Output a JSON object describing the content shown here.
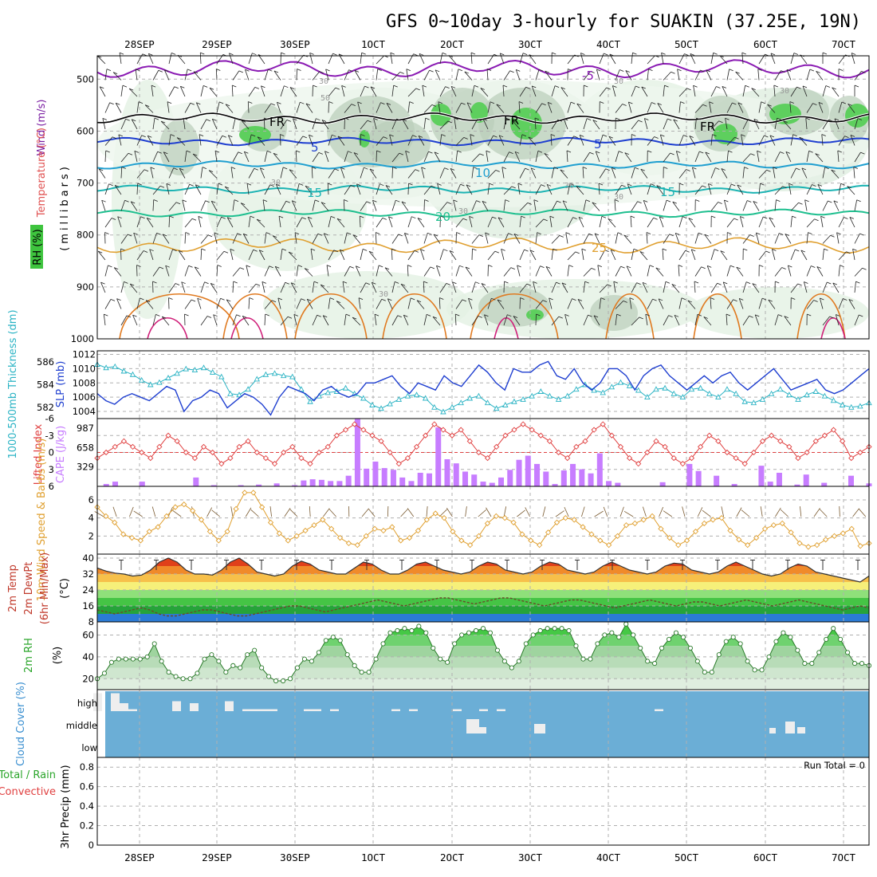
{
  "title": "GFS 0~10day 3-hourly for SUAKIN (37.25E, 19N)",
  "date_labels": [
    "28SEP",
    "29SEP",
    "30SEP",
    "1OCT",
    "2OCT",
    "3OCT",
    "4OCT",
    "5OCT",
    "6OCT",
    "7OCT"
  ],
  "panels": {
    "upper": {
      "ylabel_wind": "Wind (m/s)",
      "ylabel_temp": "Temperature (°C)",
      "ylabel_rh": "RH (%)",
      "ylabel_unit": "(millibars)",
      "yticks": [
        "500",
        "600",
        "700",
        "800",
        "900",
        "1000"
      ],
      "contour_labels": [
        "-5",
        "FR",
        "FR",
        "FR",
        "5",
        "5",
        "10",
        "15",
        "15",
        "20",
        "25"
      ],
      "rh_labels": [
        "30",
        "30",
        "30",
        "30",
        "30",
        "30",
        "50",
        "30",
        "30"
      ]
    },
    "slp": {
      "ylabel_thk": "1000-500mb Thickness (dm)",
      "ylabel_slp": "SLP (mb)",
      "yticks_left": [
        "586",
        "584",
        "582"
      ],
      "yticks_right": [
        "1012",
        "1010",
        "1008",
        "1006",
        "1004"
      ]
    },
    "cape": {
      "ylabel_li": "Lifted Index",
      "ylabel_cape": "CAPE (J/kg)",
      "yticks_left": [
        "-6",
        "-3",
        "0",
        "3",
        "6"
      ],
      "yticks_right": [
        "987",
        "658",
        "329"
      ]
    },
    "wind10": {
      "ylabel": "10m Wind Speed & Barbs (m/s)",
      "yticks": [
        "6",
        "4",
        "2"
      ]
    },
    "temp2m": {
      "ylabel1": "2m Temp",
      "ylabel2": "2m DewPt",
      "ylabel3": "(6hr Min/Max)",
      "ylabel_unit": "(°C)",
      "yticks": [
        "40",
        "32",
        "24",
        "16",
        "8"
      ]
    },
    "rh2m": {
      "ylabel": "2m RH",
      "ylabel_unit": "(%)",
      "yticks": [
        "60",
        "40",
        "20"
      ]
    },
    "cloud": {
      "ylabel": "Cloud Cover (%)",
      "levels": [
        "high",
        "middle",
        "low"
      ]
    },
    "precip": {
      "ylabel_total": "Total / Rain",
      "ylabel_conv": "Convective",
      "ylabel": "3hr Precip (mm)",
      "yticks": [
        "0.8",
        "0.6",
        "0.4",
        "0.2",
        "0"
      ],
      "run_total": "Run Total = 0"
    }
  },
  "colors": {
    "slp": "#1f3fd0",
    "thickness": "#2ab3c4",
    "lifted_index": "#e04040",
    "cape": "#c77dff",
    "wind_speed": "#e0a030",
    "rh_fill": "#3ec43e",
    "cloud_bg": "#6baed6",
    "cloud_bar": "#eeeeee"
  },
  "chart_data": [
    {
      "type": "line",
      "name": "SLP",
      "ylabel": "SLP (mb)",
      "ylim": [
        1003,
        1012
      ],
      "values": [
        1006.5,
        1005.5,
        1005,
        1006,
        1006.5,
        1006,
        1005.5,
        1006.5,
        1007.5,
        1007,
        1004,
        1005.5,
        1006,
        1007,
        1006.5,
        1004.5,
        1005.5,
        1006.5,
        1006,
        1005,
        1003.5,
        1006,
        1007.5,
        1007,
        1006.5,
        1005.5,
        1007,
        1007.5,
        1006.5,
        1006,
        1006.5,
        1008,
        1008,
        1008.5,
        1009,
        1007.5,
        1006.5,
        1008,
        1007.5,
        1007,
        1009,
        1008,
        1007.5,
        1009,
        1010.5,
        1009.5,
        1008,
        1007,
        1010,
        1009.5,
        1009.5,
        1010.5,
        1011,
        1009,
        1008.5,
        1010,
        1008,
        1007,
        1008,
        1010,
        1010,
        1009,
        1007,
        1009,
        1010,
        1010.5,
        1009,
        1008,
        1007,
        1008,
        1009,
        1008,
        1009,
        1009.5,
        1008,
        1007,
        1008,
        1009,
        1010,
        1008.5,
        1007,
        1007.5,
        1008,
        1008.5,
        1007,
        1006.5,
        1007,
        1008,
        1009,
        1010
      ]
    },
    {
      "type": "line",
      "name": "1000-500mb Thickness",
      "ylabel": "Thickness (dm)",
      "ylim": [
        581,
        587
      ],
      "values": [
        585.8,
        585.5,
        585.6,
        585.2,
        584.9,
        584.4,
        584.0,
        584.2,
        584.6,
        585.0,
        585.4,
        585.3,
        585.5,
        585.1,
        584.7,
        583.2,
        583.1,
        583.6,
        584.5,
        584.9,
        585.0,
        584.8,
        584.7,
        583.6,
        582.5,
        583.0,
        583.3,
        583.4,
        583.7,
        583.2,
        582.8,
        582.2,
        581.9,
        582.3,
        582.7,
        583.0,
        583.1,
        582.8,
        582.0,
        581.6,
        582.0,
        582.4,
        582.8,
        583.0,
        582.4,
        581.9,
        582.2,
        582.5,
        582.7,
        583.0,
        583.4,
        583.0,
        582.7,
        583.0,
        583.6,
        584.0,
        583.5,
        583.3,
        583.8,
        584.2,
        583.9,
        583.5,
        582.9,
        583.6,
        583.7,
        583.2,
        582.9,
        583.6,
        583.7,
        583.2,
        582.9,
        583.6,
        583.2,
        582.5,
        582.4,
        582.7,
        583.2,
        583.6,
        583.1,
        582.7,
        583.1,
        583.4,
        583.0,
        582.6,
        582.2,
        582.0,
        582.1,
        582.4
      ]
    },
    {
      "type": "line",
      "name": "Lifted Index",
      "ylim": [
        6,
        -6
      ],
      "values": [
        1,
        0,
        -1,
        -2,
        -1,
        0,
        1,
        -1,
        -3,
        -2,
        0,
        1,
        -1,
        0,
        2,
        1,
        -1,
        -2,
        0,
        1,
        2,
        0,
        -1,
        1,
        2,
        0,
        -1,
        -3,
        -4,
        -5,
        -4,
        -3,
        -2,
        0,
        2,
        1,
        -1,
        -3,
        -5,
        -4,
        -3,
        -4,
        -2,
        0,
        1,
        -1,
        -3,
        -4,
        -5,
        -4,
        -3,
        -2,
        0,
        1,
        -1,
        -2,
        -4,
        -5,
        -3,
        -1,
        1,
        2,
        0,
        -2,
        -1,
        1,
        2,
        1,
        -1,
        -3,
        -2,
        0,
        1,
        2,
        0,
        -2,
        -3,
        -2,
        -1,
        1,
        0,
        -2,
        -3,
        -4,
        -2,
        1,
        0,
        -1
      ]
    },
    {
      "type": "bar",
      "name": "CAPE",
      "ylim": [
        0,
        1150
      ],
      "values": [
        0,
        40,
        80,
        0,
        0,
        80,
        0,
        0,
        0,
        0,
        0,
        150,
        0,
        20,
        0,
        0,
        20,
        0,
        30,
        0,
        50,
        0,
        20,
        100,
        120,
        110,
        90,
        90,
        180,
        1200,
        300,
        420,
        310,
        280,
        150,
        90,
        230,
        220,
        1000,
        460,
        390,
        250,
        200,
        80,
        60,
        150,
        280,
        450,
        520,
        380,
        250,
        40,
        270,
        380,
        290,
        220,
        560,
        90,
        60,
        0,
        0,
        0,
        0,
        70,
        0,
        0,
        380,
        260,
        0,
        180,
        0,
        40,
        0,
        0,
        350,
        80,
        230,
        0,
        30,
        200,
        0,
        60,
        0,
        0,
        180,
        0,
        50
      ]
    },
    {
      "type": "line",
      "name": "10m Wind Speed",
      "ylabel": "m/s",
      "ylim": [
        0,
        7.5
      ],
      "values": [
        5.2,
        4.2,
        3.5,
        2.2,
        1.8,
        1.5,
        2.5,
        3.0,
        4.2,
        5.2,
        5.5,
        4.8,
        3.8,
        2.5,
        1.5,
        2.5,
        5.0,
        6.8,
        6.8,
        5.2,
        3.5,
        2.3,
        1.5,
        2.0,
        2.6,
        3.2,
        3.8,
        2.8,
        1.8,
        1.2,
        1.0,
        2.0,
        2.8,
        2.6,
        3.0,
        1.5,
        1.8,
        2.6,
        3.8,
        4.5,
        4.0,
        2.5,
        1.5,
        1.0,
        2.0,
        3.4,
        4.2,
        4.0,
        3.5,
        2.2,
        1.5,
        1.0,
        2.4,
        3.5,
        4.0,
        3.8,
        3.0,
        2.2,
        1.5,
        1.0,
        2.0,
        3.2,
        3.4,
        3.8,
        4.2,
        2.8,
        1.8,
        1.0,
        1.5,
        2.5,
        3.4,
        3.8,
        4.0,
        2.6,
        1.6,
        1.0,
        1.8,
        2.8,
        3.2,
        3.4,
        2.4,
        1.2,
        0.8,
        1.0,
        1.6,
        2.0,
        2.3,
        2.8,
        0.9,
        1.2
      ]
    },
    {
      "type": "area",
      "name": "2m Temp",
      "ylim": [
        8,
        42
      ],
      "values": [
        35,
        33.5,
        32.5,
        32,
        31,
        31.5,
        34,
        38,
        40,
        38,
        34,
        32,
        32,
        31.5,
        34,
        38,
        40,
        37,
        33,
        32,
        31,
        32,
        36,
        38.5,
        37,
        34,
        33,
        32,
        32,
        35,
        38,
        37,
        34,
        32,
        32,
        34,
        37,
        38,
        36,
        34,
        33,
        32,
        33,
        36,
        38,
        37,
        34,
        33,
        32,
        33,
        36,
        38,
        37,
        34,
        33,
        32,
        33,
        36,
        38,
        36,
        34,
        33,
        32,
        33,
        36,
        37.5,
        37,
        34,
        33,
        32,
        33,
        36,
        38,
        36,
        34,
        32,
        31,
        32,
        35,
        37,
        36,
        33,
        32,
        31,
        30,
        29,
        28,
        31
      ]
    },
    {
      "type": "line",
      "name": "2m DewPt",
      "ylim": [
        8,
        42
      ],
      "values": [
        14,
        13,
        12,
        13,
        14,
        15,
        14,
        12,
        11,
        11,
        12,
        13,
        14,
        14,
        13,
        12,
        11,
        11,
        12,
        13,
        14,
        15,
        16,
        16,
        15,
        14,
        13,
        14,
        15,
        16,
        17,
        18,
        19,
        18,
        17,
        16,
        17,
        18,
        19,
        20,
        20,
        19,
        18,
        17,
        18,
        19,
        20,
        20,
        19,
        18,
        17,
        16,
        17,
        18,
        19,
        19,
        18,
        17,
        16,
        15,
        16,
        17,
        18,
        19,
        18,
        17,
        16,
        17,
        18,
        18,
        17,
        16,
        17,
        18,
        19,
        18,
        17,
        16,
        17,
        18,
        19,
        18,
        17,
        16,
        15,
        14,
        15,
        16,
        15
      ]
    },
    {
      "type": "area",
      "name": "2m RH",
      "ylabel": "%",
      "ylim": [
        10,
        72
      ],
      "values": [
        20,
        25,
        35,
        38,
        38,
        38,
        38,
        40,
        52,
        36,
        26,
        22,
        20,
        20,
        25,
        38,
        42,
        36,
        26,
        32,
        30,
        42,
        46,
        30,
        22,
        18,
        18,
        20,
        30,
        38,
        36,
        44,
        55,
        58,
        55,
        42,
        32,
        26,
        26,
        38,
        52,
        62,
        64,
        66,
        64,
        68,
        62,
        48,
        38,
        35,
        52,
        60,
        62,
        64,
        66,
        62,
        46,
        36,
        30,
        36,
        52,
        60,
        64,
        66,
        66,
        66,
        64,
        50,
        38,
        38,
        52,
        60,
        62,
        58,
        70,
        60,
        48,
        36,
        34,
        48,
        56,
        62,
        58,
        48,
        36,
        26,
        26,
        42,
        54,
        58,
        52,
        36,
        28,
        28,
        40,
        54,
        62,
        58,
        46,
        34,
        34,
        44,
        56,
        66,
        56,
        44,
        34,
        34,
        32
      ]
    },
    {
      "type": "bar",
      "name": "Cloud Cover",
      "series": [
        {
          "name": "high",
          "values": [
            90,
            0,
            90,
            40,
            10,
            0,
            0,
            0,
            0,
            50,
            0,
            40,
            0,
            0,
            0,
            50,
            0,
            10,
            10,
            10,
            10,
            0,
            0,
            0,
            10,
            10,
            0,
            10,
            0,
            0,
            0,
            0,
            0,
            0,
            10,
            0,
            10,
            0,
            0,
            0,
            0,
            10,
            0,
            0,
            10,
            0,
            10,
            0,
            0,
            0,
            0,
            0,
            0,
            0,
            0,
            0,
            0,
            0,
            0,
            0,
            0,
            0,
            0,
            0,
            10,
            0,
            0,
            0,
            0,
            0,
            0,
            0,
            0,
            0,
            0,
            0,
            0,
            0,
            0,
            0,
            0,
            0,
            0,
            0,
            0,
            0,
            0,
            0,
            0
          ]
        },
        {
          "name": "middle",
          "values": [
            0,
            0,
            0,
            0,
            0,
            0,
            0,
            0,
            0,
            0,
            0,
            0,
            0,
            0,
            0,
            0,
            0,
            0,
            0,
            0,
            0,
            0,
            0,
            0,
            0,
            0,
            0,
            0,
            0,
            0,
            0,
            0,
            0,
            0,
            0,
            0,
            0,
            0,
            0,
            0,
            0,
            0,
            0,
            0,
            0,
            0,
            0,
            0,
            0,
            0,
            0,
            0,
            0,
            0,
            0,
            0,
            0,
            0,
            0,
            0,
            0,
            0,
            0,
            0,
            0,
            0,
            0,
            0,
            0,
            0,
            0,
            0,
            0,
            0,
            0,
            0,
            0,
            0,
            0,
            0,
            0,
            0,
            0,
            0,
            0,
            0,
            0,
            0,
            0
          ]
        }
      ]
    },
    {
      "type": "bar",
      "name": "3hr Precip",
      "ylabel": "3hr Precip (mm)",
      "ylim": [
        0,
        0.9
      ],
      "values": []
    }
  ]
}
